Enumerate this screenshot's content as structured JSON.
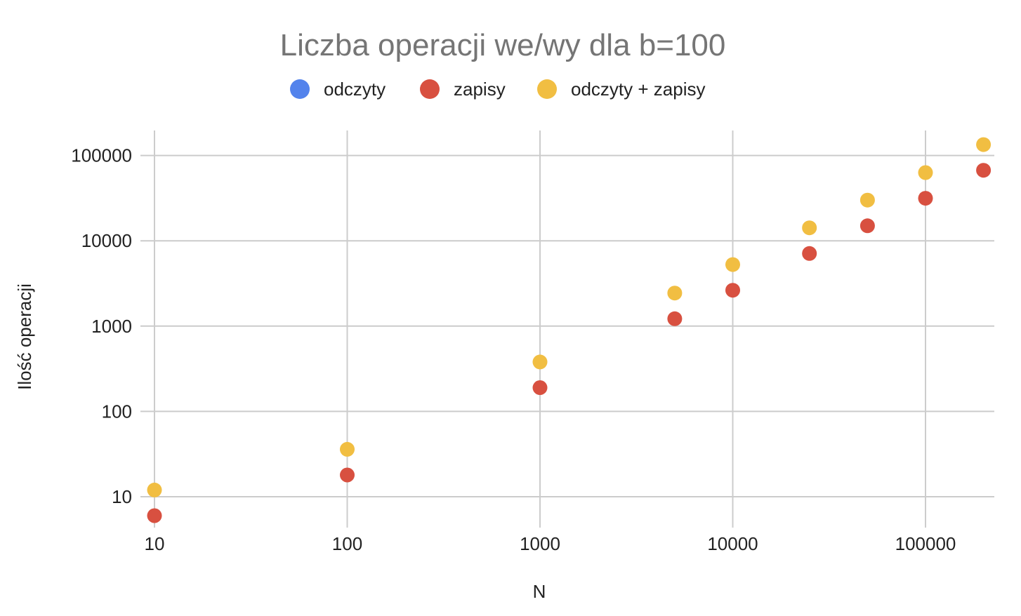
{
  "chart_data": {
    "type": "scatter",
    "title": "Liczba operacji we/wy dla b=100",
    "xlabel": "N",
    "ylabel": "Ilość operacji",
    "xscale": "log",
    "yscale": "log",
    "xlim": [
      10,
      200000
    ],
    "ylim": [
      5,
      100000
    ],
    "xticks": [
      "10",
      "100",
      "1000",
      "10000",
      "100000"
    ],
    "yticks": [
      "10",
      "100",
      "1000",
      "10000",
      "100000"
    ],
    "grid": true,
    "legend_position": "top",
    "series": [
      {
        "name": "odczyty",
        "color": "#5383EC",
        "x": [],
        "y": []
      },
      {
        "name": "zapisy",
        "color": "#D85040",
        "x": [
          10,
          100,
          1000,
          5000,
          10000,
          25000,
          50000,
          100000,
          200000
        ],
        "y": [
          6,
          18,
          190,
          1220,
          2630,
          7100,
          15000,
          31500,
          67000
        ]
      },
      {
        "name": "odczyty + zapisy",
        "color": "#F1BE42",
        "x": [
          10,
          100,
          1000,
          5000,
          10000,
          25000,
          50000,
          100000,
          200000
        ],
        "y": [
          12,
          36,
          380,
          2440,
          5260,
          14200,
          30000,
          63000,
          134000
        ]
      }
    ]
  }
}
